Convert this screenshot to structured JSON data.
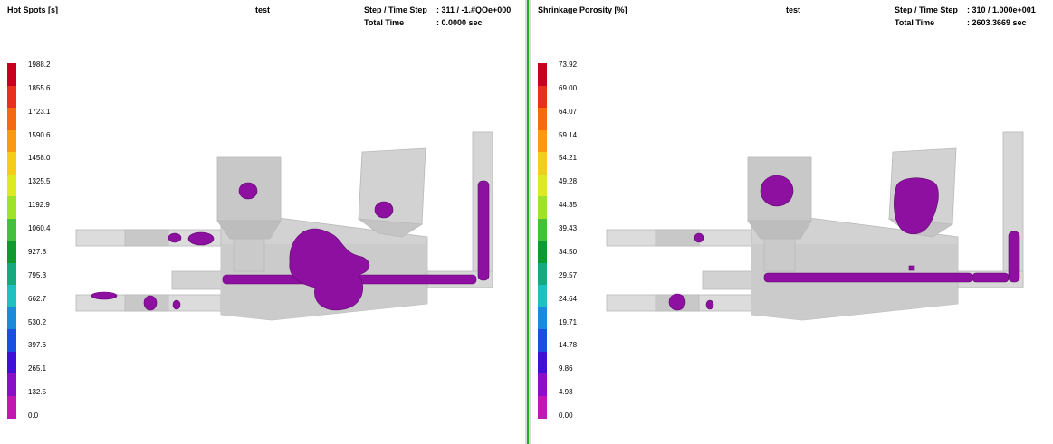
{
  "left_view": {
    "result_label": "Hot Spots [s]",
    "project_name": "test",
    "step_label": "Step / Time Step",
    "step_value": ": 311 / -1.#QOe+000",
    "time_label": "Total  Time",
    "time_value": ": 0.0000 sec",
    "legend_ticks": [
      "1988.2",
      "1855.6",
      "1723.1",
      "1590.6",
      "1458.0",
      "1325.5",
      "1192.9",
      "1060.4",
      "927.8",
      "795.3",
      "662.7",
      "530.2",
      "397.6",
      "265.1",
      "132.5",
      "0.0"
    ]
  },
  "right_view": {
    "result_label": "Shrinkage Porosity [%]",
    "project_name": "test",
    "step_label": "Step / Time Step",
    "step_value": ": 310 / 1.000e+001",
    "time_label": "Total  Time",
    "time_value": ": 2603.3669 sec",
    "legend_ticks": [
      "73.92",
      "69.00",
      "64.07",
      "59.14",
      "54.21",
      "49.28",
      "44.35",
      "39.43",
      "34.50",
      "29.57",
      "24.64",
      "19.71",
      "14.78",
      "9.86",
      "4.93",
      "0.00"
    ]
  },
  "legend_colors": [
    "#c8001e",
    "#e8301c",
    "#f46a10",
    "#f99a12",
    "#f6cc1a",
    "#dcea22",
    "#9ee22a",
    "#44c03c",
    "#109a2e",
    "#16a87e",
    "#20c0c0",
    "#1b8ad8",
    "#1a50e0",
    "#3f10d8",
    "#8a10c8",
    "#c018b0"
  ],
  "defect_color": "#8e10a0",
  "casting_color": "#d6d6d6"
}
